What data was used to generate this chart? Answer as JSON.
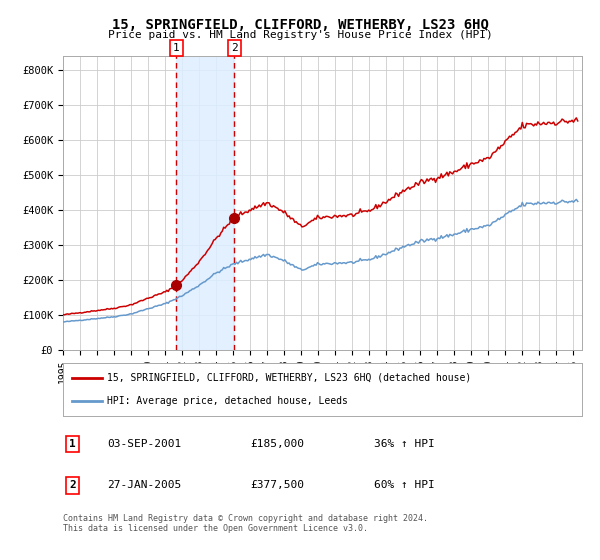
{
  "title": "15, SPRINGFIELD, CLIFFORD, WETHERBY, LS23 6HQ",
  "subtitle": "Price paid vs. HM Land Registry's House Price Index (HPI)",
  "ylim": [
    0,
    840000
  ],
  "xlim_start": 1995.0,
  "xlim_end": 2025.5,
  "background_color": "#ffffff",
  "plot_bg_color": "#ffffff",
  "grid_color": "#cccccc",
  "sale1_date": 2001.67,
  "sale1_price": 185000,
  "sale1_label": "1",
  "sale2_date": 2005.07,
  "sale2_price": 377500,
  "sale2_label": "2",
  "hpi_line_color": "#6699cc",
  "price_line_color": "#cc0000",
  "sale_dot_color": "#aa0000",
  "shade_color": "#ddeeff",
  "dashed_line_color": "#cc0000",
  "legend_house_label": "15, SPRINGFIELD, CLIFFORD, WETHERBY, LS23 6HQ (detached house)",
  "legend_hpi_label": "HPI: Average price, detached house, Leeds",
  "table_row1": [
    "1",
    "03-SEP-2001",
    "£185,000",
    "36% ↑ HPI"
  ],
  "table_row2": [
    "2",
    "27-JAN-2005",
    "£377,500",
    "60% ↑ HPI"
  ],
  "footnote": "Contains HM Land Registry data © Crown copyright and database right 2024.\nThis data is licensed under the Open Government Licence v3.0.",
  "ytick_labels": [
    "£0",
    "£100K",
    "£200K",
    "£300K",
    "£400K",
    "£500K",
    "£600K",
    "£700K",
    "£800K"
  ],
  "ytick_values": [
    0,
    100000,
    200000,
    300000,
    400000,
    500000,
    600000,
    700000,
    800000
  ],
  "hpi_base_points_x": [
    1995,
    1996,
    1997,
    1998,
    1999,
    2000,
    2001,
    2002,
    2003,
    2004,
    2005,
    2006,
    2007,
    2008,
    2009,
    2010,
    2011,
    2012,
    2013,
    2014,
    2015,
    2016,
    2017,
    2018,
    2019,
    2020,
    2021,
    2022,
    2023,
    2024,
    2025
  ],
  "hpi_base_points_y": [
    80000,
    85000,
    90000,
    95000,
    103000,
    118000,
    132000,
    155000,
    185000,
    220000,
    245000,
    260000,
    273000,
    255000,
    228000,
    245000,
    248000,
    250000,
    258000,
    275000,
    295000,
    310000,
    320000,
    330000,
    345000,
    355000,
    385000,
    415000,
    420000,
    422000,
    425000
  ]
}
